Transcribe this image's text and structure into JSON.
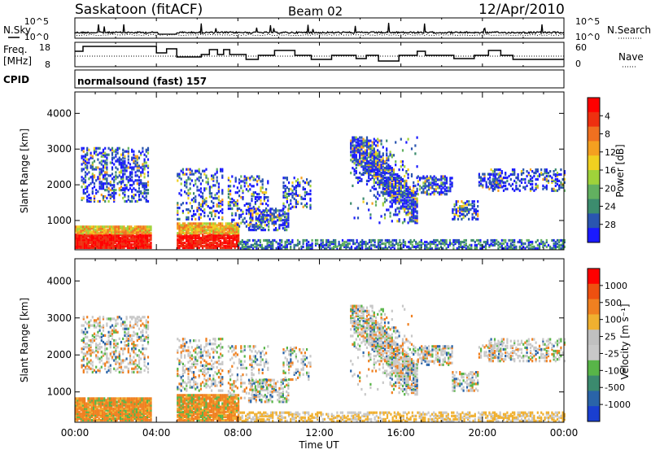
{
  "header": {
    "station": "Saskatoon (fitACF)",
    "beam": "Beam 02",
    "date": "12/Apr/2010"
  },
  "ancillary": {
    "nsky_label": "N.Sky",
    "nsearch_label": "N.Search",
    "freq_label_1": "Freq.",
    "freq_label_2": "[MHz]",
    "nave_label": "Nave",
    "cpid_label": "CPID",
    "cpid_text": "normalsound (fast) 157",
    "noise_ticks": [
      "10^5",
      "10^0"
    ],
    "freq_ticks": [
      "18",
      "8"
    ],
    "nave_ticks": [
      "60",
      "0"
    ]
  },
  "chart_data": [
    {
      "type": "heatmap",
      "name": "power",
      "ylabel": "Slant Range [km]",
      "xlabel": "",
      "xlim": [
        "00:00",
        "24:00"
      ],
      "ylim": [
        180,
        4600
      ],
      "ytick_labels": [
        "1000",
        "2000",
        "3000",
        "4000"
      ],
      "xtick_labels": [
        "00:00",
        "04:00",
        "08:00",
        "12:00",
        "16:00",
        "20:00",
        "00:00"
      ],
      "colorbar": {
        "label": "Power [dB]",
        "tick_labels": [
          "4",
          "8",
          "12",
          "16",
          "20",
          "24",
          "28"
        ],
        "colors": [
          "#1a1aff",
          "#2a55b0",
          "#3c8c6e",
          "#62b060",
          "#9fd23a",
          "#f0d020",
          "#f4a020",
          "#f07020",
          "#ee3010",
          "#ff0000"
        ]
      }
    },
    {
      "type": "heatmap",
      "name": "velocity",
      "ylabel": "Slant Range [km]",
      "xlabel": "Time UT",
      "xlim": [
        "00:00",
        "24:00"
      ],
      "ylim": [
        180,
        4600
      ],
      "ytick_labels": [
        "1000",
        "2000",
        "3000",
        "4000"
      ],
      "xtick_labels": [
        "00:00",
        "04:00",
        "08:00",
        "12:00",
        "16:00",
        "20:00",
        "00:00"
      ],
      "colorbar": {
        "label": "Velocity [m s⁻¹]",
        "tick_labels": [
          "1000",
          "500",
          "100",
          "25",
          "-25",
          "-100",
          "-500",
          "-1000"
        ],
        "colors": [
          "#1a3fd0",
          "#2a64a8",
          "#3b8a6e",
          "#58b548",
          "#c8c8c8",
          "#c0c0c0",
          "#f0b030",
          "#f08020",
          "#ee5010",
          "#ff0000"
        ]
      }
    }
  ]
}
